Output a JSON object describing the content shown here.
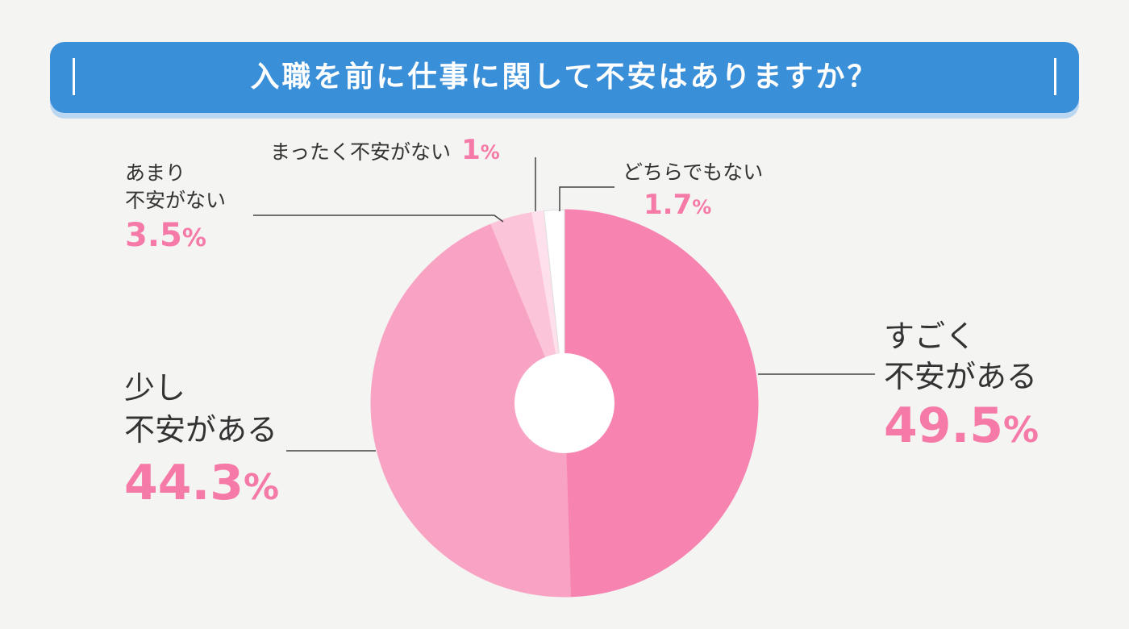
{
  "title": "入職を前に仕事に関して不安はありますか？",
  "colors": {
    "title_bg": "#3a8fd9",
    "title_shadow": "#bcd7f2",
    "accent_pct": "#f57aa8",
    "background": "#f4f4f2"
  },
  "chart_data": {
    "type": "pie",
    "donut": true,
    "start": "12 o'clock",
    "direction": "clockwise",
    "slices": [
      {
        "label_lines": [
          "すごく",
          "不安がある"
        ],
        "value": 49.5,
        "pct_text": "49.5",
        "color": "#f783b0"
      },
      {
        "label_lines": [
          "少し",
          "不安がある"
        ],
        "value": 44.3,
        "pct_text": "44.3",
        "color": "#f9a3c4"
      },
      {
        "label_lines": [
          "あまり",
          "不安がない"
        ],
        "value": 3.5,
        "pct_text": "3.5",
        "color": "#fbc4d8"
      },
      {
        "label_lines": [
          "まったく不安がない"
        ],
        "value": 1,
        "pct_text": "1",
        "color": "#fde0eb"
      },
      {
        "label_lines": [
          "どちらでもない"
        ],
        "value": 1.7,
        "pct_text": "1.7",
        "color": "#ffffff"
      }
    ],
    "percent_sign": "%"
  }
}
